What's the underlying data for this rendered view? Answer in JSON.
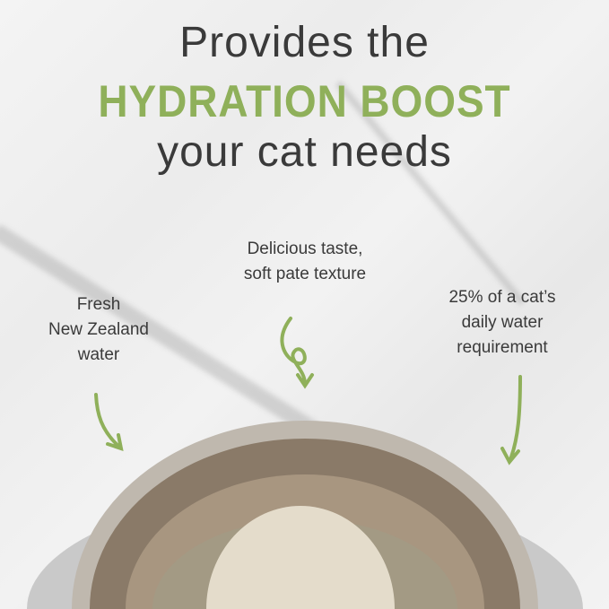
{
  "headline": {
    "line1": "Provides the",
    "line2": "HYDRATION BOOST",
    "line3": "your cat needs"
  },
  "callouts": [
    {
      "text": "Fresh\nNew Zealand\nwater"
    },
    {
      "text": "Delicious taste,\nsoft pate texture"
    },
    {
      "text": "25% of a cat’s\ndaily water\nrequirement"
    }
  ],
  "colors": {
    "accent": "#8fb05a",
    "text": "#3a3a3a"
  }
}
